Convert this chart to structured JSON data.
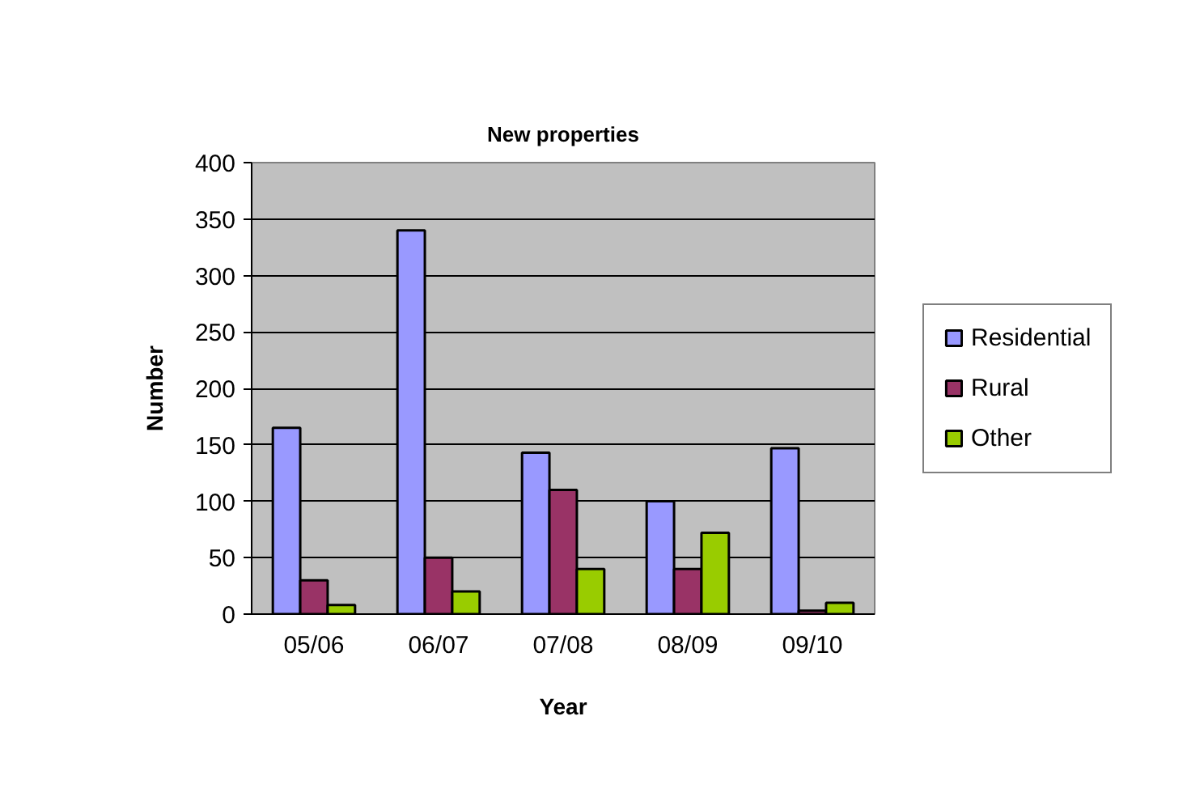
{
  "chart_data": {
    "type": "bar",
    "title": "New properties",
    "xlabel": "Year",
    "ylabel": "Number",
    "categories": [
      "05/06",
      "06/07",
      "07/08",
      "08/09",
      "09/10"
    ],
    "series": [
      {
        "name": "Residential",
        "color": "#9999ff",
        "values": [
          165,
          340,
          143,
          100,
          147
        ]
      },
      {
        "name": "Rural",
        "color": "#993366",
        "values": [
          30,
          50,
          110,
          40,
          3
        ]
      },
      {
        "name": "Other",
        "color": "#99cc00",
        "values": [
          8,
          20,
          40,
          72,
          10
        ]
      }
    ],
    "ylim": [
      0,
      400
    ],
    "yticks": [
      0,
      50,
      100,
      150,
      200,
      250,
      300,
      350,
      400
    ],
    "grid": "y",
    "legend": "right"
  }
}
